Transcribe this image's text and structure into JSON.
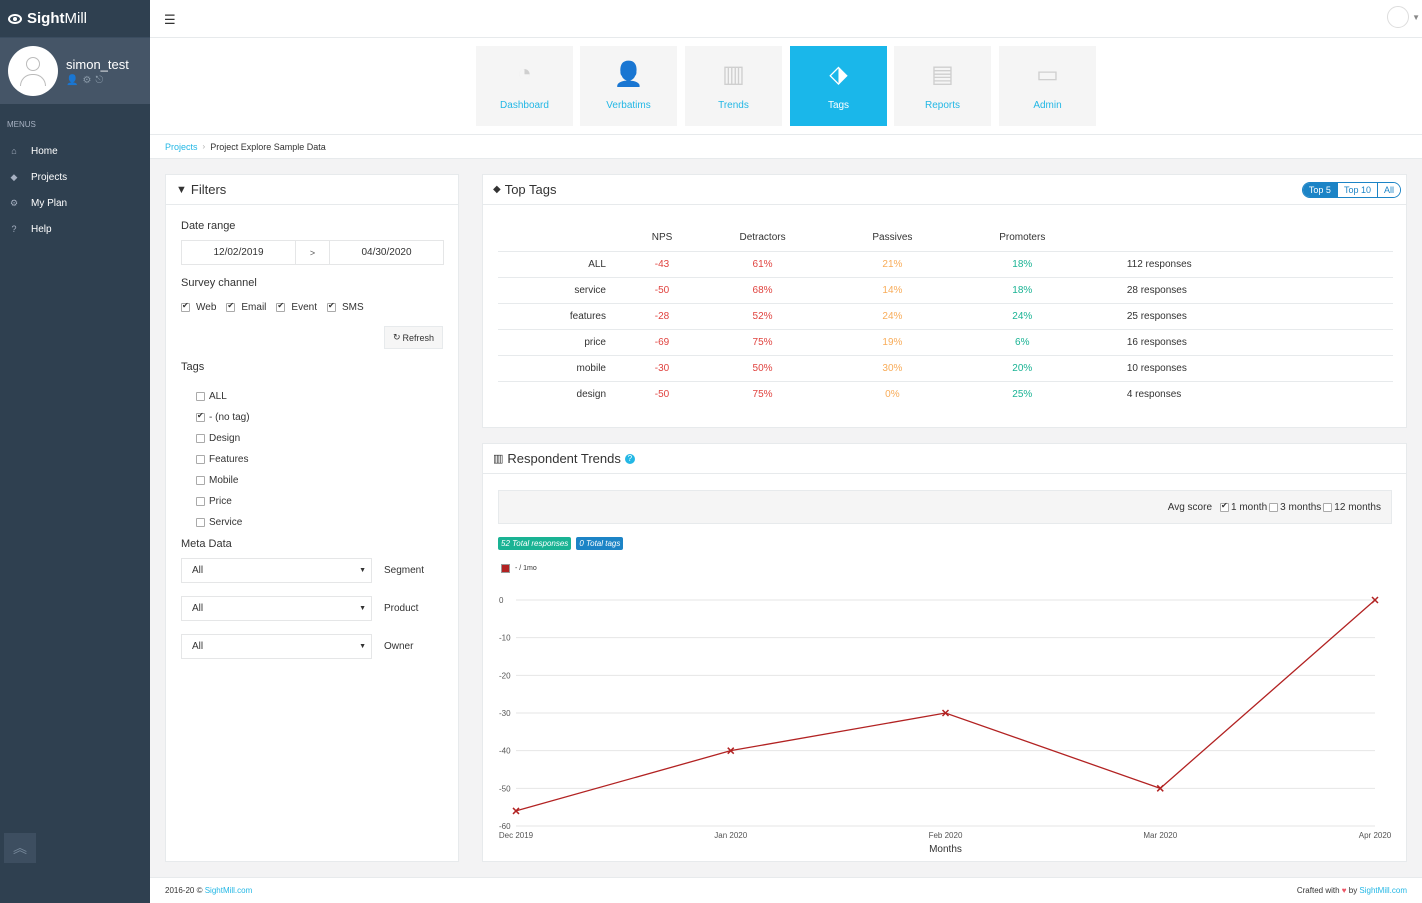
{
  "brand": {
    "name_a": "Sight",
    "name_b": "Mill"
  },
  "user": {
    "name": "simon_test"
  },
  "sidebar": {
    "menus_label": "MENUS",
    "items": [
      {
        "label": "Home",
        "icon": "home-icon"
      },
      {
        "label": "Projects",
        "icon": "tags-icon"
      },
      {
        "label": "My Plan",
        "icon": "gear-icon"
      },
      {
        "label": "Help",
        "icon": "help-icon"
      }
    ]
  },
  "modules": [
    {
      "label": "Dashboard",
      "icon": "dashboard-icon",
      "active": false
    },
    {
      "label": "Verbatims",
      "icon": "user-icon",
      "active": false
    },
    {
      "label": "Trends",
      "icon": "bar-chart-icon",
      "active": false
    },
    {
      "label": "Tags",
      "icon": "tags-icon",
      "active": true
    },
    {
      "label": "Reports",
      "icon": "newspaper-icon",
      "active": false
    },
    {
      "label": "Admin",
      "icon": "laptop-icon",
      "active": false
    }
  ],
  "breadcrumb": {
    "root": "Projects",
    "current": "Project Explore Sample Data"
  },
  "filters": {
    "title": "Filters",
    "date_range_label": "Date range",
    "date_from": "12/02/2019",
    "date_sep": ">",
    "date_to": "04/30/2020",
    "survey_channel_label": "Survey channel",
    "channels": [
      {
        "label": "Web",
        "checked": true
      },
      {
        "label": "Email",
        "checked": true
      },
      {
        "label": "Event",
        "checked": true
      },
      {
        "label": "SMS",
        "checked": true
      }
    ],
    "refresh_label": "Refresh",
    "tags_label": "Tags",
    "tags": [
      {
        "label": "ALL",
        "checked": false
      },
      {
        "label": "- (no tag)",
        "checked": true
      },
      {
        "label": "Design",
        "checked": false
      },
      {
        "label": "Features",
        "checked": false
      },
      {
        "label": "Mobile",
        "checked": false
      },
      {
        "label": "Price",
        "checked": false
      },
      {
        "label": "Service",
        "checked": false
      }
    ],
    "meta_label": "Meta Data",
    "meta": [
      {
        "value": "All",
        "label": "Segment"
      },
      {
        "value": "All",
        "label": "Product"
      },
      {
        "value": "All",
        "label": "Owner"
      }
    ]
  },
  "top_tags": {
    "title": "Top Tags",
    "toggle": [
      "Top 5",
      "Top 10",
      "All"
    ],
    "columns": [
      "NPS",
      "Detractors",
      "Passives",
      "Promoters"
    ],
    "rows": [
      {
        "tag": "ALL",
        "nps": "-43",
        "detractors": "61%",
        "passives": "21%",
        "promoters": "18%",
        "responses": "112 responses"
      },
      {
        "tag": "service",
        "nps": "-50",
        "detractors": "68%",
        "passives": "14%",
        "promoters": "18%",
        "responses": "28 responses"
      },
      {
        "tag": "features",
        "nps": "-28",
        "detractors": "52%",
        "passives": "24%",
        "promoters": "24%",
        "responses": "25 responses"
      },
      {
        "tag": "price",
        "nps": "-69",
        "detractors": "75%",
        "passives": "19%",
        "promoters": "6%",
        "responses": "16 responses"
      },
      {
        "tag": "mobile",
        "nps": "-30",
        "detractors": "50%",
        "passives": "30%",
        "promoters": "20%",
        "responses": "10 responses"
      },
      {
        "tag": "design",
        "nps": "-50",
        "detractors": "75%",
        "passives": "0%",
        "promoters": "25%",
        "responses": "4 responses"
      }
    ]
  },
  "trends": {
    "title": "Respondent Trends",
    "avg_score_label": "Avg score",
    "period_options": [
      {
        "label": "1 month",
        "checked": true
      },
      {
        "label": "3 months",
        "checked": false
      },
      {
        "label": "12 months",
        "checked": false
      }
    ],
    "badge_total_responses": "52 Total responses",
    "badge_total_tags": "0 Total tags",
    "legend_label": "- / 1mo"
  },
  "chart_data": {
    "type": "line",
    "x": [
      "Dec 2019",
      "Jan 2020",
      "Feb 2020",
      "Mar 2020",
      "Apr 2020"
    ],
    "series": [
      {
        "name": "- / 1mo",
        "values": [
          -56,
          -40,
          -30,
          -50,
          0
        ],
        "color": "#b22222"
      }
    ],
    "xlabel": "Months",
    "ylabel": "",
    "ylim": [
      -60,
      0
    ],
    "yticks": [
      0,
      -10,
      -20,
      -30,
      -40,
      -50,
      -60
    ]
  },
  "footer": {
    "left_text": "2016-20 © ",
    "left_link": "SightMill.com",
    "right_text": "Crafted with ",
    "right_by": " by ",
    "right_link": "SightMill.com"
  },
  "colors": {
    "sidebar": "#2f4050",
    "accent": "#1ab7ea",
    "detractor": "#ed5565",
    "passive": "#f8ac59",
    "promoter": "#1ab394"
  }
}
